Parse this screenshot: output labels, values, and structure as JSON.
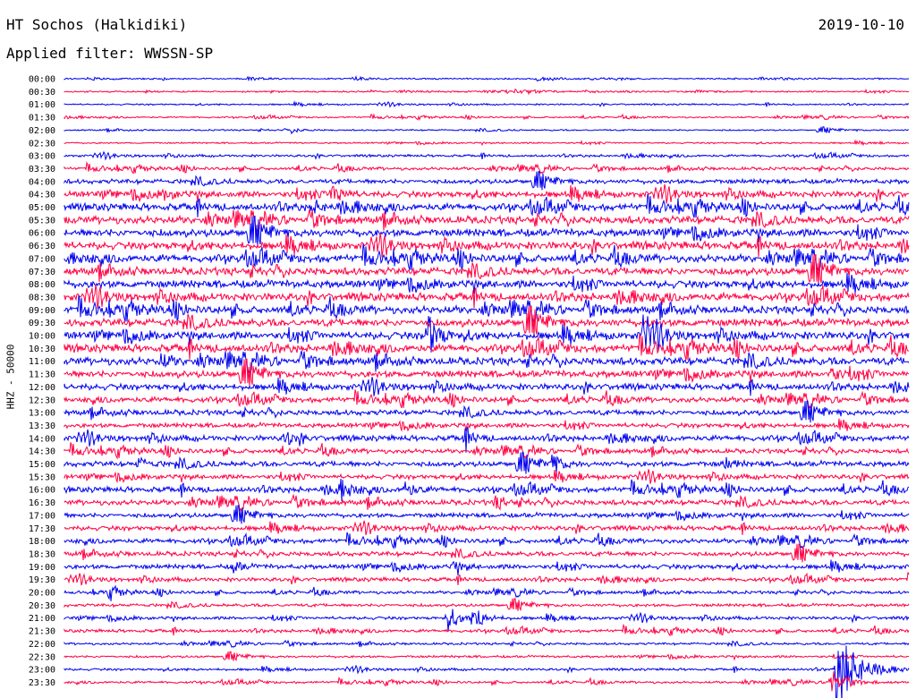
{
  "header": {
    "station": "HT Sochos (Halkidiki)",
    "date": "2019-10-10",
    "filter": "Applied filter: WWSSN-SP"
  },
  "channel_label": "HHZ - 50000",
  "colors": {
    "blue": "#0000ee",
    "red": "#ff0044"
  },
  "chart_data": {
    "type": "line",
    "title": "HT Sochos (Halkidiki)",
    "subtitle": "Applied filter: WWSSN-SP",
    "ylabel": "HHZ - 50000",
    "xlabel": "",
    "grid": false,
    "x_minutes": [
      0,
      30
    ],
    "row_labels": [
      "00:00",
      "00:30",
      "01:00",
      "01:30",
      "02:00",
      "02:30",
      "03:00",
      "03:30",
      "04:00",
      "04:30",
      "05:00",
      "05:30",
      "06:00",
      "06:30",
      "07:00",
      "07:30",
      "08:00",
      "08:30",
      "09:00",
      "09:30",
      "10:00",
      "10:30",
      "11:00",
      "11:30",
      "12:00",
      "12:30",
      "13:00",
      "13:30",
      "14:00",
      "14:30",
      "15:00",
      "15:30",
      "16:00",
      "16:30",
      "17:00",
      "17:30",
      "18:00",
      "18:30",
      "19:00",
      "19:30",
      "20:00",
      "20:30",
      "21:00",
      "21:30",
      "22:00",
      "22:30",
      "23:00",
      "23:30"
    ],
    "noise_level": [
      1,
      1,
      1,
      1,
      1,
      1,
      1.5,
      2,
      3,
      4,
      4.5,
      5,
      5,
      5,
      5,
      5,
      5,
      5,
      5,
      5,
      5,
      5,
      5,
      4.5,
      4,
      3.5,
      3.5,
      3,
      3.5,
      3,
      3.5,
      3,
      3.5,
      3.5,
      3,
      3,
      3,
      3,
      3,
      2.5,
      2,
      2,
      2,
      2,
      1.5,
      1.5,
      1.5,
      1.5
    ],
    "series_colors": [
      "blue",
      "red"
    ],
    "events": [
      {
        "row": 4,
        "minute": 8.0,
        "amplitude": 3
      },
      {
        "row": 9,
        "minute": 3.5,
        "amplitude": 7
      },
      {
        "row": 9,
        "minute": 9.5,
        "amplitude": 14
      },
      {
        "row": 10,
        "minute": 8.8,
        "amplitude": 7
      },
      {
        "row": 20,
        "minute": 12.9,
        "amplitude": 28
      },
      {
        "row": 20,
        "minute": 20.5,
        "amplitude": 26
      },
      {
        "row": 22,
        "minute": 3.4,
        "amplitude": 9
      },
      {
        "row": 23,
        "minute": 27.2,
        "amplitude": 8
      },
      {
        "row": 28,
        "minute": 7.8,
        "amplitude": 9
      },
      {
        "row": 28,
        "minute": 14.2,
        "amplitude": 9
      },
      {
        "row": 30,
        "minute": 2.6,
        "amplitude": 7
      },
      {
        "row": 30,
        "minute": 17.3,
        "amplitude": 12
      },
      {
        "row": 30,
        "minute": 23.4,
        "amplitude": 8
      },
      {
        "row": 32,
        "minute": 9.8,
        "amplitude": 10
      },
      {
        "row": 32,
        "minute": 12.1,
        "amplitude": 9
      },
      {
        "row": 33,
        "minute": 15.3,
        "amplitude": 8
      },
      {
        "row": 38,
        "minute": 6.0,
        "amplitude": 6
      },
      {
        "row": 38,
        "minute": 13.8,
        "amplitude": 7
      },
      {
        "row": 40,
        "minute": 1.6,
        "amplitude": 6
      },
      {
        "row": 42,
        "minute": 13.6,
        "amplitude": 16
      },
      {
        "row": 42,
        "minute": 14.5,
        "amplitude": 18
      },
      {
        "row": 46,
        "minute": 27.4,
        "amplitude": 55
      },
      {
        "row": 47,
        "minute": 27.2,
        "amplitude": 22
      }
    ]
  }
}
